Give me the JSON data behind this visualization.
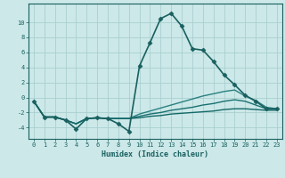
{
  "xlabel": "Humidex (Indice chaleur)",
  "ylabel": "",
  "xlim": [
    -0.5,
    23.5
  ],
  "ylim": [
    -5.5,
    12.5
  ],
  "bg_color": "#cce8e8",
  "grid_color": "#aacfcf",
  "line_color": "#1a6060",
  "xticks": [
    0,
    1,
    2,
    3,
    4,
    5,
    6,
    7,
    8,
    9,
    10,
    11,
    12,
    13,
    14,
    15,
    16,
    17,
    18,
    19,
    20,
    21,
    22,
    23
  ],
  "yticks": [
    -4,
    -2,
    0,
    2,
    4,
    6,
    8,
    10
  ],
  "series": [
    {
      "x": [
        0,
        1,
        2,
        3,
        4,
        5,
        6,
        7,
        8,
        9,
        10,
        11,
        12,
        13,
        14,
        15,
        16,
        17,
        18,
        19,
        20,
        21,
        22,
        23
      ],
      "y": [
        -0.5,
        -2.6,
        -2.6,
        -3.0,
        -4.2,
        -2.8,
        -2.7,
        -2.8,
        -3.5,
        -4.5,
        4.2,
        7.3,
        10.5,
        11.2,
        9.5,
        6.5,
        6.3,
        4.8,
        3.0,
        1.7,
        0.3,
        -0.5,
        -1.5,
        -1.5
      ],
      "marker": "D",
      "markersize": 2.5,
      "linewidth": 1.2,
      "color": "#1a6060"
    },
    {
      "x": [
        0,
        1,
        2,
        3,
        4,
        5,
        6,
        7,
        8,
        9,
        10,
        11,
        12,
        13,
        14,
        15,
        16,
        17,
        18,
        19,
        20,
        21,
        22,
        23
      ],
      "y": [
        -0.5,
        -2.6,
        -2.6,
        -3.0,
        -3.5,
        -2.8,
        -2.7,
        -2.8,
        -2.8,
        -2.8,
        -2.2,
        -1.8,
        -1.4,
        -1.0,
        -0.6,
        -0.2,
        0.2,
        0.5,
        0.8,
        1.0,
        0.2,
        -0.4,
        -1.3,
        -1.5
      ],
      "marker": null,
      "linewidth": 1.0,
      "color": "#2a8080"
    },
    {
      "x": [
        0,
        1,
        2,
        3,
        4,
        5,
        6,
        7,
        8,
        9,
        10,
        11,
        12,
        13,
        14,
        15,
        16,
        17,
        18,
        19,
        20,
        21,
        22,
        23
      ],
      "y": [
        -0.5,
        -2.6,
        -2.6,
        -3.0,
        -3.5,
        -2.8,
        -2.7,
        -2.8,
        -2.8,
        -2.8,
        -2.5,
        -2.2,
        -2.0,
        -1.7,
        -1.5,
        -1.3,
        -1.0,
        -0.8,
        -0.5,
        -0.3,
        -0.5,
        -1.0,
        -1.5,
        -1.5
      ],
      "marker": null,
      "linewidth": 1.0,
      "color": "#1a7070"
    },
    {
      "x": [
        0,
        1,
        2,
        3,
        4,
        5,
        6,
        7,
        8,
        9,
        10,
        11,
        12,
        13,
        14,
        15,
        16,
        17,
        18,
        19,
        20,
        21,
        22,
        23
      ],
      "y": [
        -0.5,
        -2.6,
        -2.6,
        -3.0,
        -3.5,
        -2.8,
        -2.7,
        -2.8,
        -2.8,
        -2.8,
        -2.7,
        -2.5,
        -2.4,
        -2.2,
        -2.1,
        -2.0,
        -1.9,
        -1.8,
        -1.6,
        -1.5,
        -1.5,
        -1.6,
        -1.7,
        -1.7
      ],
      "marker": null,
      "linewidth": 1.0,
      "color": "#156868"
    }
  ]
}
